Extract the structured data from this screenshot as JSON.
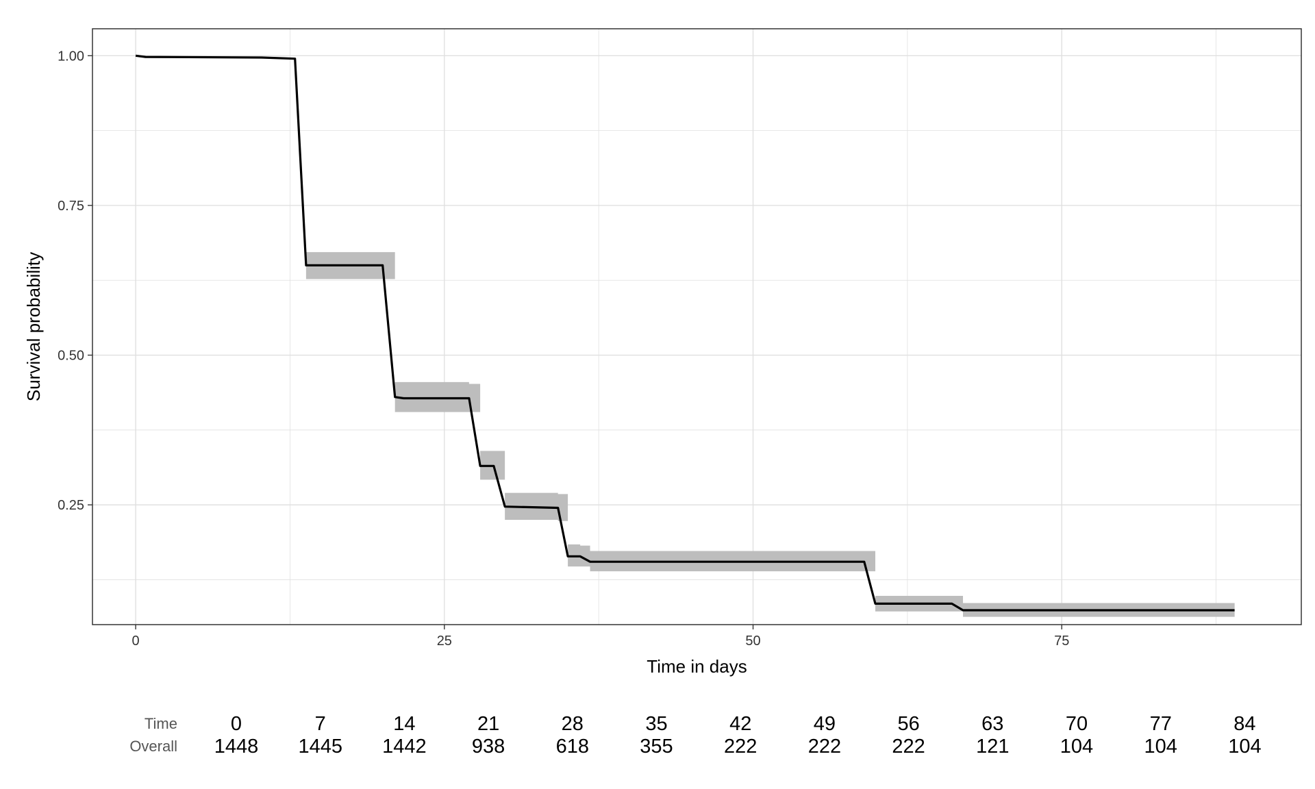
{
  "chart_data": {
    "type": "line",
    "subtype": "kaplan-meier",
    "title": "",
    "xlabel": "Time in days",
    "ylabel": "Survival probability",
    "xlim": [
      -3.5,
      94.4
    ],
    "ylim": [
      0.05,
      1.045
    ],
    "x_ticks": [
      0,
      25,
      50,
      75
    ],
    "y_ticks": [
      0.25,
      0.5,
      0.75,
      1.0
    ],
    "y_tick_labels": [
      "0.25",
      "0.50",
      "0.75",
      "1.00"
    ],
    "grid": true,
    "colors": {
      "line": "#000000",
      "ci_band": "#bdbdbd",
      "grid": "#e0e0e0",
      "border": "#333333"
    },
    "series": [
      {
        "name": "Overall",
        "steps": [
          [
            0,
            1.0
          ],
          [
            0.8,
            0.998
          ],
          [
            10.2,
            0.997
          ],
          [
            12.9,
            0.995
          ],
          [
            13.8,
            0.65
          ],
          [
            20.0,
            0.65
          ],
          [
            21.0,
            0.43
          ],
          [
            21.7,
            0.428
          ],
          [
            27.0,
            0.428
          ],
          [
            27.9,
            0.315
          ],
          [
            29.0,
            0.315
          ],
          [
            29.9,
            0.247
          ],
          [
            34.2,
            0.245
          ],
          [
            35.0,
            0.164
          ],
          [
            36.0,
            0.164
          ],
          [
            36.8,
            0.155
          ],
          [
            59.0,
            0.155
          ],
          [
            59.9,
            0.085
          ],
          [
            66.1,
            0.085
          ],
          [
            67.0,
            0.074
          ],
          [
            89.0,
            0.074
          ]
        ],
        "ci_band": [
          [
            0,
            1.0,
            1.0
          ],
          [
            13.8,
            0.627,
            0.672
          ],
          [
            20.0,
            0.627,
            0.672
          ],
          [
            21.0,
            0.405,
            0.455
          ],
          [
            27.0,
            0.405,
            0.452
          ],
          [
            27.9,
            0.292,
            0.34
          ],
          [
            29.0,
            0.292,
            0.34
          ],
          [
            29.9,
            0.225,
            0.27
          ],
          [
            34.2,
            0.223,
            0.268
          ],
          [
            35.0,
            0.147,
            0.184
          ],
          [
            36.0,
            0.147,
            0.182
          ],
          [
            36.8,
            0.139,
            0.173
          ],
          [
            59.0,
            0.139,
            0.173
          ],
          [
            59.9,
            0.072,
            0.098
          ],
          [
            66.1,
            0.072,
            0.098
          ],
          [
            67.0,
            0.063,
            0.086
          ],
          [
            89.0,
            0.063,
            0.086
          ]
        ]
      }
    ],
    "risk_table": {
      "header_label": "Time",
      "row_label": "Overall",
      "times": [
        0,
        7,
        14,
        21,
        28,
        35,
        42,
        49,
        56,
        63,
        70,
        77,
        84
      ],
      "at_risk": [
        1448,
        1445,
        1442,
        938,
        618,
        355,
        222,
        222,
        222,
        121,
        104,
        104,
        104
      ]
    }
  }
}
